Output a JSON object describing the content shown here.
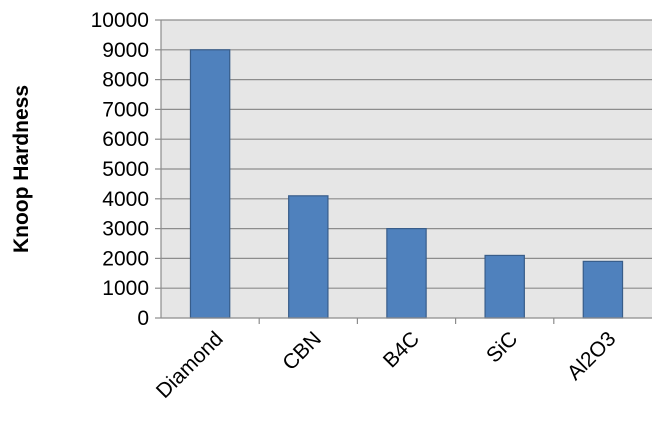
{
  "chart_data": {
    "type": "bar",
    "title": "",
    "xlabel": "",
    "ylabel": "Knoop Hardness",
    "categories": [
      "Diamond",
      "CBN",
      "B4C",
      "SiC",
      "Al2O3"
    ],
    "values": [
      9000,
      4100,
      3000,
      2100,
      1900
    ],
    "ylim": [
      0,
      10000
    ],
    "yticks": [
      0,
      1000,
      2000,
      3000,
      4000,
      5000,
      6000,
      7000,
      8000,
      9000,
      10000
    ],
    "grid": true,
    "legend": "none",
    "colors": {
      "bar_fill": "#4F81BD",
      "bar_stroke": "#385D8A",
      "plot_background": "#E6E6E6",
      "gridline": "#8C8C8C",
      "axis": "#8C8C8C"
    }
  }
}
